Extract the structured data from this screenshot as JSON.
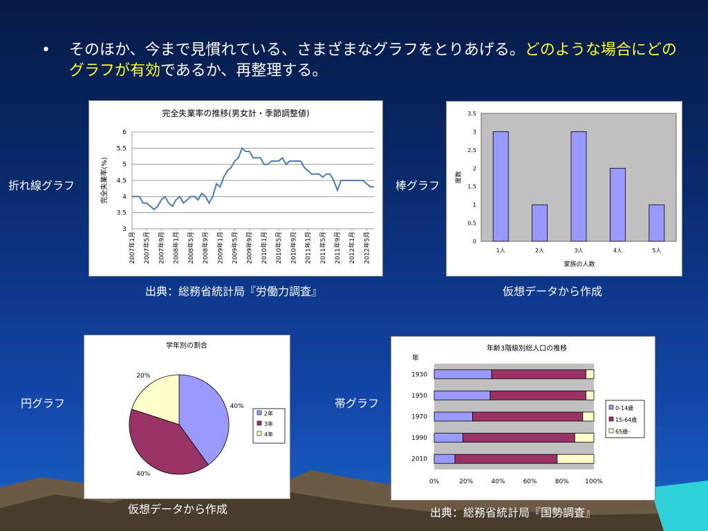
{
  "heading": {
    "bullet": "•",
    "text_plain": "そのほか、今まで見慣れている、さまざまなグラフをとりあげる。",
    "text_highlight": "どのような場合にどのグラフが有効",
    "text_end": "であるか、再整理する。"
  },
  "labels": {
    "line_graph": "折れ線グラフ",
    "bar_graph": "棒グラフ",
    "pie_graph": "円グラフ",
    "band_graph": "帯グラフ"
  },
  "captions": {
    "line_source": "出典：総務省統計局『労働力調査』",
    "bar_source": "仮想データから作成",
    "pie_source": "仮想データから作成",
    "band_source": "出典：総務省統計局『国勢調査』"
  },
  "colors": {
    "line": "#4a7ab8",
    "bar_fill": "#9999ff",
    "plot_gray": "#c0c0c0",
    "pie_2nen": "#9999ff",
    "pie_3nen": "#993366",
    "pie_4nen": "#ffffcc",
    "band_0_14": "#9999ff",
    "band_15_64": "#993366",
    "band_65": "#ffffcc"
  },
  "chart_data": [
    {
      "type": "line",
      "title": "完全失業率の推移(男女計・季節調整値)",
      "ylabel": "完全失業率(%)",
      "ylim": [
        3,
        6
      ],
      "yticks": [
        "3",
        "3.5",
        "4",
        "4.5",
        "5",
        "5.5",
        "6"
      ],
      "xticks": [
        "2007年1月",
        "2007年5月",
        "2007年9月",
        "2008年1月",
        "2008年5月",
        "2008年9月",
        "2009年1月",
        "2009年5月",
        "2009年9月",
        "2010年1月",
        "2010年5月",
        "2010年9月",
        "2011年1月",
        "2011年5月",
        "2011年9月",
        "2012年1月",
        "2012年5月"
      ],
      "grid": true,
      "series": [
        {
          "values": [
            4.0,
            4.0,
            4.0,
            3.8,
            3.8,
            3.7,
            3.6,
            3.7,
            3.9,
            4.0,
            3.8,
            3.7,
            3.9,
            4.0,
            3.8,
            3.9,
            4.0,
            4.0,
            3.9,
            4.1,
            4.0,
            3.8,
            4.0,
            4.4,
            4.3,
            4.6,
            4.8,
            4.9,
            5.1,
            5.2,
            5.5,
            5.4,
            5.4,
            5.2,
            5.2,
            5.2,
            5.0,
            5.0,
            5.1,
            5.1,
            5.1,
            5.2,
            5.0,
            5.1,
            5.1,
            5.1,
            5.1,
            4.9,
            4.8,
            4.7,
            4.7,
            4.7,
            4.6,
            4.7,
            4.7,
            4.5,
            4.2,
            4.5,
            4.5,
            4.5,
            4.5,
            4.5,
            4.5,
            4.5,
            4.4,
            4.3,
            4.3
          ]
        }
      ]
    },
    {
      "type": "bar",
      "categories": [
        "1人",
        "2人",
        "3人",
        "4人",
        "5人"
      ],
      "values": [
        3,
        1,
        3,
        2,
        1
      ],
      "xlabel": "家族の人数",
      "ylabel": "度数",
      "ylim": [
        0,
        3.5
      ],
      "yticks": [
        "0",
        "0.5",
        "1",
        "1.5",
        "2",
        "2.5",
        "3",
        "3.5"
      ],
      "grid": false
    },
    {
      "type": "pie",
      "title": "学年別の割合",
      "slices": [
        {
          "label": "2年",
          "value": 40,
          "text": "40%"
        },
        {
          "label": "3年",
          "value": 40,
          "text": "40%"
        },
        {
          "label": "4年",
          "value": 20,
          "text": "20%"
        }
      ],
      "legend": "right"
    },
    {
      "type": "bar",
      "orientation": "horizontal-stacked-100",
      "title": "年齢3階級別総人口の推移",
      "ylabel": "年",
      "categories": [
        "1930",
        "1950",
        "1970",
        "1990",
        "2010"
      ],
      "series": [
        {
          "name": "0-14歳",
          "values": [
            36,
            35,
            24,
            18,
            13
          ]
        },
        {
          "name": "15-64歳",
          "values": [
            59,
            60,
            69,
            70,
            64
          ]
        },
        {
          "name": "65歳-",
          "values": [
            5,
            5,
            7,
            12,
            23
          ]
        }
      ],
      "xticks": [
        "0%",
        "20%",
        "40%",
        "60%",
        "80%",
        "100%"
      ],
      "legend": "right"
    }
  ]
}
